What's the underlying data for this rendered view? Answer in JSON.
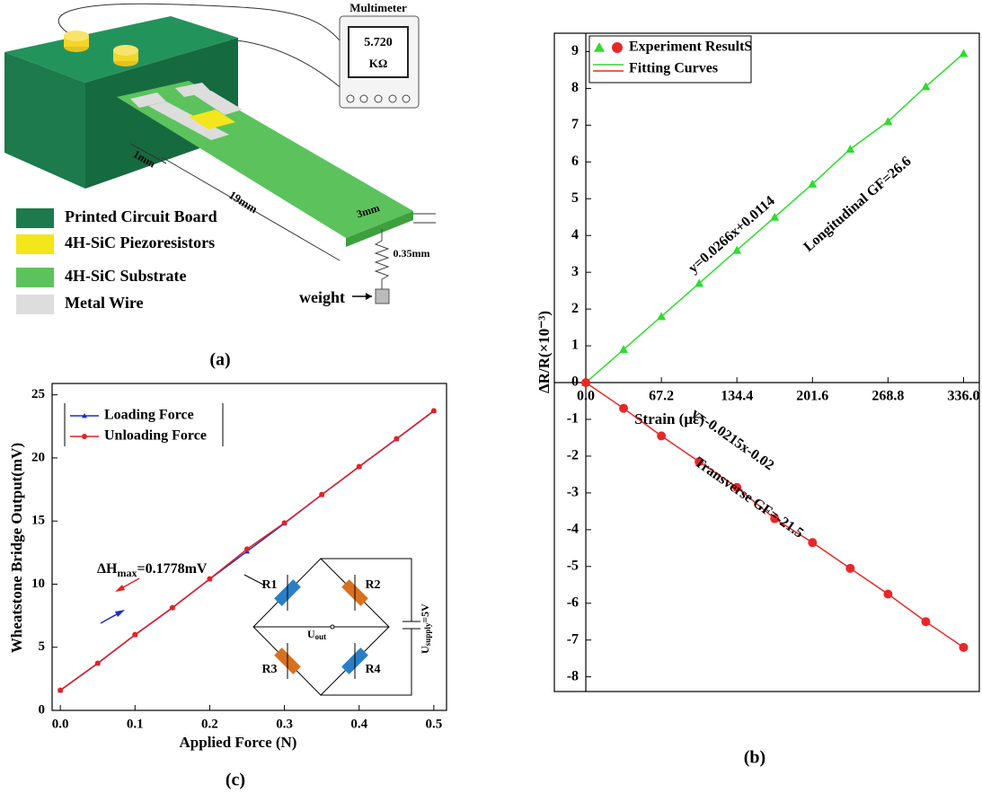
{
  "panel_labels": [
    "(a)",
    "(b)",
    "(c)"
  ],
  "diagram": {
    "multimeter": {
      "title": "Multimeter",
      "reading": "5.720",
      "unit": "KΩ"
    },
    "dimensions": [
      "1mm",
      "19mm",
      "3mm",
      "0.35mm"
    ],
    "weight": "weight",
    "legend": [
      {
        "label": "Printed Circuit Board",
        "color": "#1c7a4c"
      },
      {
        "label": "4H-SiC Piezoresistors",
        "color": "#f3e61a"
      },
      {
        "label": "4H-SiC Substrate",
        "color": "#5cc35c"
      },
      {
        "label": "Metal Wire",
        "color": "#dddddd"
      }
    ]
  },
  "chart_data": [
    {
      "type": "line",
      "xlabel": "Strain (με)",
      "ylabel": "ΔR/R(×10⁻³)",
      "x": [
        0,
        33.6,
        67.2,
        100.8,
        134.4,
        168,
        201.6,
        235.2,
        268.8,
        302.4,
        336
      ],
      "series": [
        {
          "color": "#2edc2e",
          "marker": "triangle",
          "values": [
            0,
            0.9,
            1.8,
            2.7,
            3.6,
            4.5,
            5.4,
            6.35,
            7.1,
            8.05,
            8.95
          ]
        },
        {
          "color": "#e82828",
          "marker": "circle",
          "values": [
            0,
            -0.7,
            -1.45,
            -2.15,
            -2.85,
            -3.7,
            -4.35,
            -5.05,
            -5.75,
            -6.5,
            -7.2
          ]
        }
      ],
      "legend_labels": [
        "Experiment ResultS",
        "Fitting Curves"
      ],
      "annotations": [
        "y=0.0266x+0.0114",
        "Longitudinal GF=26.6",
        "y=-0.0215x-0.02",
        "Transverse GF=-21.5"
      ],
      "xlim": [
        -28,
        350
      ],
      "ylim": [
        -8.4,
        9.5
      ],
      "xticks": [
        {
          "value": 0,
          "label": "0.0"
        },
        67.2,
        134.4,
        201.6,
        268.8,
        {
          "value": 336,
          "label": "336.0"
        }
      ],
      "yticks": [
        -8,
        -7,
        -6,
        -5,
        -4,
        -3,
        -2,
        -1,
        0,
        1,
        2,
        3,
        4,
        5,
        6,
        7,
        8,
        9
      ],
      "grid": false
    },
    {
      "type": "line",
      "xlabel": "Applied Force  (N)",
      "ylabel": "Wheatstone Bridge Output(mV)",
      "x": [
        0,
        0.05,
        0.1,
        0.15,
        0.2,
        0.25,
        0.3,
        0.35,
        0.4,
        0.45,
        0.5
      ],
      "series": [
        {
          "name": "Loading Force",
          "color": "#1a2ecc",
          "marker": "triangle",
          "values": [
            1.58,
            3.72,
            5.98,
            8.12,
            10.4,
            12.6,
            14.82,
            17.08,
            19.3,
            21.5,
            23.72
          ]
        },
        {
          "name": "Unloading Force",
          "color": "#e52222",
          "marker": "circle",
          "values": [
            1.6,
            3.74,
            6.0,
            8.14,
            10.42,
            12.78,
            14.85,
            17.1,
            19.32,
            21.52,
            23.74
          ]
        }
      ],
      "annotation": {
        "main": "ΔH",
        "sub": "max",
        "tail": "=0.1778mV"
      },
      "circuit": {
        "resistors": [
          "R1",
          "R2",
          "R3",
          "R4"
        ],
        "output": {
          "main": "U",
          "sub": "out"
        },
        "supply": {
          "main": "U",
          "sub": "supply",
          "tail": "=5V"
        }
      },
      "xlim": [
        -0.011,
        0.517
      ],
      "ylim": [
        0,
        25.9
      ],
      "xticks": [
        {
          "value": 0,
          "label": "0.0"
        },
        0.1,
        0.2,
        0.3,
        0.4,
        0.5
      ],
      "yticks": [
        0,
        5,
        10,
        15,
        20,
        25
      ],
      "grid": false
    }
  ]
}
